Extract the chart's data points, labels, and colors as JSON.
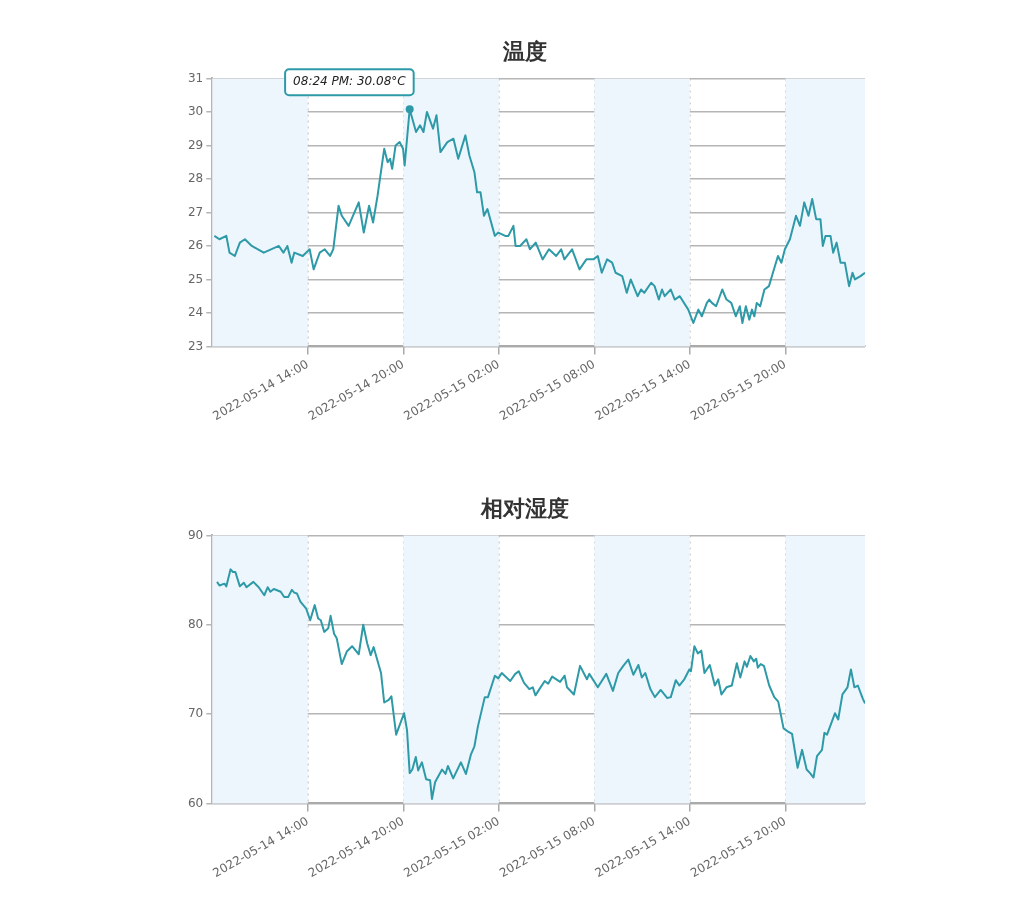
{
  "chart_data": [
    {
      "type": "line",
      "title": "温度",
      "xlim": [
        "2022-05-14T08:00",
        "2022-05-16T01:00"
      ],
      "xticks": [
        {
          "value": "2022-05-14T14:00",
          "label": "2022-05-14 14:00"
        },
        {
          "value": "2022-05-14T20:00",
          "label": "2022-05-14 20:00"
        },
        {
          "value": "2022-05-15T02:00",
          "label": "2022-05-15 02:00"
        },
        {
          "value": "2022-05-15T08:00",
          "label": "2022-05-15 08:00"
        },
        {
          "value": "2022-05-15T14:00",
          "label": "2022-05-15 14:00"
        },
        {
          "value": "2022-05-15T20:00",
          "label": "2022-05-15 20:00"
        }
      ],
      "ylim": [
        23,
        31
      ],
      "yticks": [
        23,
        24,
        25,
        26,
        27,
        28,
        29,
        30,
        31
      ],
      "grid": true,
      "legend": false,
      "marker": "none",
      "line_style": "solid",
      "bands": [
        {
          "axis": "x",
          "from": "2022-05-14T08:00",
          "to": "2022-05-14T14:00",
          "color": "#eef6fd"
        },
        {
          "axis": "x",
          "from": "2022-05-14T20:00",
          "to": "2022-05-15T02:00",
          "color": "#eef6fd"
        },
        {
          "axis": "x",
          "from": "2022-05-15T08:00",
          "to": "2022-05-15T14:00",
          "color": "#eef6fd"
        },
        {
          "axis": "x",
          "from": "2022-05-15T20:00",
          "to": "2022-05-16T01:00",
          "color": "#eef6fd"
        }
      ],
      "annotations": [
        {
          "text": "08:24 PM: 30.08°C",
          "x": "2022-05-14T20:24",
          "y": 30.08
        }
      ],
      "series": [
        {
          "color": "#2e9aa8",
          "x": [
            "2022-05-14T08:08",
            "2022-05-14T08:27",
            "2022-05-14T08:53",
            "2022-05-14T09:05",
            "2022-05-14T09:25",
            "2022-05-14T09:44",
            "2022-05-14T10:03",
            "2022-05-14T10:29",
            "2022-05-14T11:14",
            "2022-05-14T12:11",
            "2022-05-14T12:28",
            "2022-05-14T12:43",
            "2022-05-14T12:59",
            "2022-05-14T13:09",
            "2022-05-14T13:41",
            "2022-05-14T14:07",
            "2022-05-14T14:22",
            "2022-05-14T14:45",
            "2022-05-14T15:04",
            "2022-05-14T15:24",
            "2022-05-14T15:36",
            "2022-05-14T15:56",
            "2022-05-14T16:08",
            "2022-05-14T16:34",
            "2022-05-14T17:12",
            "2022-05-14T17:31",
            "2022-05-14T17:51",
            "2022-05-14T18:06",
            "2022-05-14T18:23",
            "2022-05-14T18:48",
            "2022-05-14T19:01",
            "2022-05-14T19:10",
            "2022-05-14T19:18",
            "2022-05-14T19:31",
            "2022-05-14T19:46",
            "2022-05-14T19:59",
            "2022-05-14T20:05",
            "2022-05-14T20:14",
            "2022-05-14T20:24",
            "2022-05-14T20:48",
            "2022-05-14T21:03",
            "2022-05-14T21:16",
            "2022-05-14T21:29",
            "2022-05-14T21:52",
            "2022-05-14T22:05",
            "2022-05-14T22:20",
            "2022-05-14T22:46",
            "2022-05-14T23:09",
            "2022-05-14T23:27",
            "2022-05-14T23:54",
            "2022-05-15T00:09",
            "2022-05-15T00:28",
            "2022-05-15T00:38",
            "2022-05-15T00:51",
            "2022-05-15T01:04",
            "2022-05-15T01:17",
            "2022-05-15T01:45",
            "2022-05-15T01:58",
            "2022-05-15T02:24",
            "2022-05-15T02:36",
            "2022-05-15T02:55",
            "2022-05-15T03:03",
            "2022-05-15T03:20",
            "2022-05-15T03:44",
            "2022-05-15T03:57",
            "2022-05-15T04:19",
            "2022-05-15T04:45",
            "2022-05-15T05:09",
            "2022-05-15T05:36",
            "2022-05-15T05:55",
            "2022-05-15T06:07",
            "2022-05-15T06:36",
            "2022-05-15T07:04",
            "2022-05-15T07:30",
            "2022-05-15T07:56",
            "2022-05-15T08:13",
            "2022-05-15T08:28",
            "2022-05-15T08:48",
            "2022-05-15T09:07",
            "2022-05-15T09:20",
            "2022-05-15T09:45",
            "2022-05-15T10:02",
            "2022-05-15T10:17",
            "2022-05-15T10:43",
            "2022-05-15T10:56",
            "2022-05-15T11:08",
            "2022-05-15T11:34",
            "2022-05-15T11:47",
            "2022-05-15T12:03",
            "2022-05-15T12:15",
            "2022-05-15T12:25",
            "2022-05-15T12:48",
            "2022-05-15T13:03",
            "2022-05-15T13:22",
            "2022-05-15T13:54",
            "2022-05-15T14:13",
            "2022-05-15T14:32",
            "2022-05-15T14:45",
            "2022-05-15T15:04",
            "2022-05-15T15:13",
            "2022-05-15T15:23",
            "2022-05-15T15:39",
            "2022-05-15T16:02",
            "2022-05-15T16:18",
            "2022-05-15T16:36",
            "2022-05-15T16:53",
            "2022-05-15T17:08",
            "2022-05-15T17:18",
            "2022-05-15T17:31",
            "2022-05-15T17:44",
            "2022-05-15T17:54",
            "2022-05-15T18:03",
            "2022-05-15T18:12",
            "2022-05-15T18:25",
            "2022-05-15T18:41",
            "2022-05-15T18:58",
            "2022-05-15T19:13",
            "2022-05-15T19:32",
            "2022-05-15T19:45",
            "2022-05-15T19:58",
            "2022-05-15T20:17",
            "2022-05-15T20:40",
            "2022-05-15T20:55",
            "2022-05-15T21:11",
            "2022-05-15T21:27",
            "2022-05-15T21:41",
            "2022-05-15T21:56",
            "2022-05-15T22:12",
            "2022-05-15T22:21",
            "2022-05-15T22:31",
            "2022-05-15T22:50",
            "2022-05-15T23:00",
            "2022-05-15T23:13",
            "2022-05-15T23:28",
            "2022-05-15T23:44",
            "2022-05-16T00:00",
            "2022-05-16T00:13",
            "2022-05-16T00:22",
            "2022-05-16T00:43",
            "2022-05-16T01:00"
          ],
          "values": [
            26.3,
            26.2,
            26.3,
            25.8,
            25.7,
            26.1,
            26.2,
            26.0,
            25.8,
            26.0,
            25.8,
            26.0,
            25.5,
            25.8,
            25.7,
            25.9,
            25.3,
            25.8,
            25.9,
            25.7,
            25.9,
            27.2,
            26.9,
            26.6,
            27.3,
            26.4,
            27.2,
            26.7,
            27.5,
            28.9,
            28.5,
            28.6,
            28.3,
            29.0,
            29.1,
            28.9,
            28.4,
            29.2,
            30.08,
            29.4,
            29.6,
            29.4,
            30.0,
            29.5,
            29.9,
            28.8,
            29.1,
            29.2,
            28.6,
            29.3,
            28.7,
            28.2,
            27.6,
            27.6,
            26.9,
            27.1,
            26.3,
            26.4,
            26.3,
            26.3,
            26.6,
            26.0,
            26.0,
            26.2,
            25.9,
            26.1,
            25.6,
            25.9,
            25.7,
            25.9,
            25.6,
            25.9,
            25.3,
            25.6,
            25.6,
            25.7,
            25.2,
            25.6,
            25.5,
            25.2,
            25.1,
            24.6,
            25.0,
            24.5,
            24.7,
            24.6,
            24.9,
            24.8,
            24.4,
            24.7,
            24.5,
            24.7,
            24.4,
            24.5,
            24.1,
            23.7,
            24.1,
            23.9,
            24.3,
            24.4,
            24.3,
            24.2,
            24.7,
            24.4,
            24.3,
            23.9,
            24.2,
            23.7,
            24.2,
            23.8,
            24.1,
            23.9,
            24.3,
            24.2,
            24.7,
            24.8,
            25.2,
            25.7,
            25.5,
            25.9,
            26.2,
            26.9,
            26.6,
            27.3,
            26.9,
            27.4,
            26.8,
            26.8,
            26.0,
            26.3,
            26.3,
            25.8,
            26.1,
            25.5,
            25.5,
            24.8,
            25.2,
            25.0,
            25.1,
            25.2
          ]
        }
      ]
    },
    {
      "type": "line",
      "title": "相对湿度",
      "xlim": [
        "2022-05-14T08:00",
        "2022-05-16T01:00"
      ],
      "xticks": [
        {
          "value": "2022-05-14T14:00",
          "label": "2022-05-14 14:00"
        },
        {
          "value": "2022-05-14T20:00",
          "label": "2022-05-14 20:00"
        },
        {
          "value": "2022-05-15T02:00",
          "label": "2022-05-15 02:00"
        },
        {
          "value": "2022-05-15T08:00",
          "label": "2022-05-15 08:00"
        },
        {
          "value": "2022-05-15T14:00",
          "label": "2022-05-15 14:00"
        },
        {
          "value": "2022-05-15T20:00",
          "label": "2022-05-15 20:00"
        }
      ],
      "ylim": [
        60,
        90
      ],
      "yticks": [
        60,
        70,
        80,
        90
      ],
      "grid": true,
      "legend": false,
      "marker": "none",
      "line_style": "solid",
      "bands": [
        {
          "axis": "x",
          "from": "2022-05-14T08:00",
          "to": "2022-05-14T14:00",
          "color": "#eef6fd"
        },
        {
          "axis": "x",
          "from": "2022-05-14T20:00",
          "to": "2022-05-15T02:00",
          "color": "#eef6fd"
        },
        {
          "axis": "x",
          "from": "2022-05-15T08:00",
          "to": "2022-05-15T14:00",
          "color": "#eef6fd"
        },
        {
          "axis": "x",
          "from": "2022-05-15T20:00",
          "to": "2022-05-16T01:00",
          "color": "#eef6fd"
        }
      ],
      "series": [
        {
          "color": "#2e9aa8",
          "x": [
            "2022-05-14T08:18",
            "2022-05-14T08:27",
            "2022-05-14T08:46",
            "2022-05-14T08:53",
            "2022-05-14T09:09",
            "2022-05-14T09:18",
            "2022-05-14T09:27",
            "2022-05-14T09:44",
            "2022-05-14T09:59",
            "2022-05-14T10:09",
            "2022-05-14T10:35",
            "2022-05-14T10:55",
            "2022-05-14T11:16",
            "2022-05-14T11:29",
            "2022-05-14T11:39",
            "2022-05-14T11:52",
            "2022-05-14T12:18",
            "2022-05-14T12:31",
            "2022-05-14T12:46",
            "2022-05-14T13:00",
            "2022-05-14T13:09",
            "2022-05-14T13:19",
            "2022-05-14T13:32",
            "2022-05-14T13:54",
            "2022-05-14T14:09",
            "2022-05-14T14:26",
            "2022-05-14T14:39",
            "2022-05-14T14:49",
            "2022-05-14T15:02",
            "2022-05-14T15:17",
            "2022-05-14T15:26",
            "2022-05-14T15:39",
            "2022-05-14T15:49",
            "2022-05-14T16:08",
            "2022-05-14T16:27",
            "2022-05-14T16:47",
            "2022-05-14T17:12",
            "2022-05-14T17:29",
            "2022-05-14T17:44",
            "2022-05-14T17:57",
            "2022-05-14T18:08",
            "2022-05-14T18:36",
            "2022-05-14T18:48",
            "2022-05-14T19:05",
            "2022-05-14T19:15",
            "2022-05-14T19:33",
            "2022-05-14T20:03",
            "2022-05-14T20:14",
            "2022-05-14T20:24",
            "2022-05-14T20:34",
            "2022-05-14T20:47",
            "2022-05-14T20:56",
            "2022-05-14T21:10",
            "2022-05-14T21:26",
            "2022-05-14T21:41",
            "2022-05-14T21:48",
            "2022-05-14T22:00",
            "2022-05-14T22:26",
            "2022-05-14T22:39",
            "2022-05-14T22:48",
            "2022-05-14T23:08",
            "2022-05-14T23:37",
            "2022-05-14T23:56",
            "2022-05-15T00:15",
            "2022-05-15T00:28",
            "2022-05-15T00:41",
            "2022-05-15T01:07",
            "2022-05-15T01:19",
            "2022-05-15T01:45",
            "2022-05-15T01:58",
            "2022-05-15T02:11",
            "2022-05-15T02:43",
            "2022-05-15T03:02",
            "2022-05-15T03:15",
            "2022-05-15T03:35",
            "2022-05-15T03:55",
            "2022-05-15T04:08",
            "2022-05-15T04:18",
            "2022-05-15T04:33",
            "2022-05-15T04:53",
            "2022-05-15T05:06",
            "2022-05-15T05:21",
            "2022-05-15T05:51",
            "2022-05-15T06:08",
            "2022-05-15T06:17",
            "2022-05-15T06:43",
            "2022-05-15T07:06",
            "2022-05-15T07:32",
            "2022-05-15T07:41",
            "2022-05-15T08:13",
            "2022-05-15T08:45",
            "2022-05-15T09:10",
            "2022-05-15T09:30",
            "2022-05-15T09:49",
            "2022-05-15T10:08",
            "2022-05-15T10:27",
            "2022-05-15T10:46",
            "2022-05-15T10:59",
            "2022-05-15T11:12",
            "2022-05-15T11:31",
            "2022-05-15T11:48",
            "2022-05-15T12:10",
            "2022-05-15T12:35",
            "2022-05-15T12:48",
            "2022-05-15T13:07",
            "2022-05-15T13:20",
            "2022-05-15T13:39",
            "2022-05-15T13:58",
            "2022-05-15T14:04",
            "2022-05-15T14:17",
            "2022-05-15T14:30",
            "2022-05-15T14:43",
            "2022-05-15T14:55",
            "2022-05-15T15:15",
            "2022-05-15T15:34",
            "2022-05-15T15:47",
            "2022-05-15T15:59",
            "2022-05-15T16:18",
            "2022-05-15T16:38",
            "2022-05-15T16:57",
            "2022-05-15T17:10",
            "2022-05-15T17:26",
            "2022-05-15T17:35",
            "2022-05-15T17:48",
            "2022-05-15T18:01",
            "2022-05-15T18:10",
            "2022-05-15T18:16",
            "2022-05-15T18:27",
            "2022-05-15T18:39",
            "2022-05-15T18:59",
            "2022-05-15T19:18",
            "2022-05-15T19:33",
            "2022-05-15T19:53",
            "2022-05-15T20:12",
            "2022-05-15T20:25",
            "2022-05-15T20:46",
            "2022-05-15T21:03",
            "2022-05-15T21:20",
            "2022-05-15T21:33",
            "2022-05-15T21:46",
            "2022-05-15T21:59",
            "2022-05-15T22:18",
            "2022-05-15T22:27",
            "2022-05-15T22:37",
            "2022-05-15T23:07",
            "2022-05-15T23:19",
            "2022-05-15T23:35",
            "2022-05-15T23:54",
            "2022-05-16T00:07",
            "2022-05-16T00:20",
            "2022-05-16T00:33",
            "2022-05-16T00:52",
            "2022-05-16T01:00"
          ],
          "values": [
            84.8,
            84.4,
            84.6,
            84.3,
            86.2,
            85.9,
            85.9,
            84.3,
            84.7,
            84.2,
            84.8,
            84.2,
            83.3,
            84.2,
            83.7,
            84.0,
            83.7,
            83.1,
            83.1,
            83.9,
            83.6,
            83.5,
            82.6,
            81.8,
            80.5,
            82.2,
            80.7,
            80.5,
            79.2,
            79.6,
            81.0,
            79.0,
            78.5,
            75.6,
            77.0,
            77.6,
            76.7,
            80.0,
            77.9,
            76.6,
            77.5,
            74.6,
            71.3,
            71.6,
            72.0,
            67.7,
            70.1,
            68.2,
            63.4,
            63.8,
            65.2,
            63.7,
            64.6,
            62.7,
            62.6,
            60.5,
            62.4,
            63.8,
            63.3,
            64.2,
            62.8,
            64.6,
            63.3,
            65.5,
            66.4,
            68.6,
            71.9,
            71.9,
            74.3,
            74.0,
            74.6,
            73.7,
            74.5,
            74.8,
            73.5,
            72.8,
            73.0,
            72.1,
            72.8,
            73.7,
            73.4,
            74.2,
            73.6,
            74.3,
            73.0,
            72.2,
            75.4,
            73.9,
            74.5,
            73.0,
            74.5,
            72.6,
            74.6,
            75.4,
            76.1,
            74.4,
            75.5,
            74.1,
            74.6,
            72.8,
            71.9,
            72.7,
            71.8,
            71.9,
            73.8,
            73.2,
            73.9,
            75.0,
            74.8,
            77.6,
            76.8,
            77.1,
            74.6,
            75.5,
            73.2,
            73.9,
            72.2,
            73.0,
            73.2,
            75.7,
            74.1,
            75.9,
            75.3,
            76.5,
            75.9,
            76.2,
            75.2,
            75.6,
            75.4,
            73.2,
            71.9,
            71.4,
            68.4,
            68.0,
            67.8,
            64.0,
            66.0,
            63.8,
            63.4,
            62.9,
            65.3,
            66.0,
            67.9,
            67.7,
            70.1,
            69.4,
            72.2,
            73.0,
            75.0,
            73.0,
            73.2,
            71.7,
            71.2
          ]
        }
      ]
    }
  ]
}
